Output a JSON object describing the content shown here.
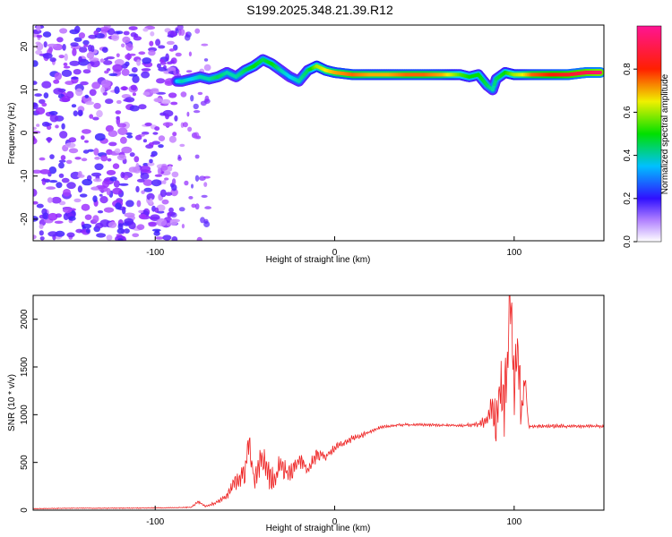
{
  "title": "S199.2025.348.21.39.R12",
  "chart_data": [
    {
      "type": "heatmap",
      "panel": "spectrogram",
      "xlabel": "Height of straight line (km)",
      "ylabel": "Frequency (Hz)",
      "xlim": [
        -168,
        150
      ],
      "ylim": [
        -25,
        25
      ],
      "xticks": [
        -100,
        0,
        100
      ],
      "yticks": [
        -20,
        -10,
        0,
        10,
        20
      ],
      "colorbar": {
        "label": "Normalized spectral amplitude",
        "range": [
          0,
          1
        ],
        "ticks": [
          0.0,
          0.2,
          0.4,
          0.6,
          0.8
        ],
        "colors": [
          "#ffffff",
          "#9a28ff",
          "#2020ff",
          "#00d2ff",
          "#00e000",
          "#f0f000",
          "#ff2000",
          "#ff1493"
        ]
      },
      "ridge": {
        "x": [
          -88,
          -85,
          -80,
          -75,
          -70,
          -65,
          -60,
          -55,
          -50,
          -45,
          -40,
          -35,
          -30,
          -25,
          -20,
          -15,
          -10,
          -5,
          0,
          10,
          20,
          30,
          40,
          50,
          60,
          70,
          75,
          80,
          85,
          88,
          90,
          95,
          100,
          105,
          110,
          120,
          130,
          140,
          148
        ],
        "freq": [
          12,
          12,
          12.5,
          13,
          12.5,
          13,
          14,
          13,
          14.5,
          15.5,
          17,
          16,
          14.5,
          13,
          12,
          14.5,
          15.5,
          14.5,
          14,
          13.5,
          13.5,
          13.5,
          13.5,
          13.5,
          13.5,
          13.5,
          13,
          13.5,
          11,
          10,
          12.5,
          14,
          13.5,
          13.5,
          13.5,
          13.5,
          13.5,
          14,
          14
        ],
        "amp": [
          0.35,
          0.4,
          0.35,
          0.4,
          0.4,
          0.45,
          0.4,
          0.4,
          0.45,
          0.5,
          0.45,
          0.5,
          0.4,
          0.35,
          0.4,
          0.45,
          0.6,
          0.65,
          0.7,
          0.75,
          0.7,
          0.7,
          0.75,
          0.75,
          0.7,
          0.55,
          0.5,
          0.5,
          0.45,
          0.4,
          0.45,
          0.5,
          0.6,
          0.65,
          0.75,
          0.8,
          0.85,
          0.9,
          0.95
        ]
      }
    },
    {
      "type": "line",
      "panel": "snr",
      "xlabel": "Height of straight line (km)",
      "ylabel": "SNR (10 * v/v)",
      "xlim": [
        -168,
        150
      ],
      "ylim": [
        0,
        2250
      ],
      "xticks": [
        -100,
        0,
        100
      ],
      "yticks": [
        0,
        500,
        1000,
        1500,
        2000
      ],
      "color": "#ee2020",
      "series": [
        {
          "x": [
            -168,
            -150,
            -130,
            -110,
            -90,
            -80,
            -76,
            -72,
            -66,
            -60,
            -55,
            -50,
            -48,
            -45,
            -40,
            -35,
            -30,
            -25,
            -20,
            -15,
            -10,
            -5,
            0,
            5,
            10,
            15,
            20,
            25,
            30,
            35,
            40,
            50,
            60,
            70,
            75,
            80,
            85,
            88,
            90,
            92,
            94,
            96,
            98,
            100,
            102,
            104,
            106,
            108,
            110,
            120,
            130,
            140,
            150
          ],
          "y": [
            15,
            20,
            20,
            22,
            25,
            30,
            90,
            40,
            80,
            150,
            300,
            400,
            720,
            330,
            550,
            300,
            450,
            380,
            530,
            420,
            590,
            560,
            650,
            700,
            750,
            780,
            830,
            860,
            880,
            890,
            895,
            895,
            890,
            885,
            890,
            900,
            930,
            1100,
            900,
            1300,
            1100,
            1400,
            2250,
            1250,
            1700,
            1000,
            1400,
            880,
            880,
            880,
            880,
            880,
            880
          ],
          "amplitude": [
            5,
            5,
            5,
            5,
            5,
            8,
            20,
            10,
            20,
            40,
            120,
            160,
            150,
            170,
            180,
            160,
            150,
            130,
            110,
            90,
            80,
            60,
            50,
            40,
            40,
            30,
            25,
            20,
            20,
            15,
            15,
            15,
            15,
            15,
            20,
            30,
            100,
            200,
            300,
            350,
            400,
            450,
            450,
            400,
            350,
            250,
            150,
            30,
            20,
            20,
            20,
            20,
            20
          ]
        }
      ]
    }
  ]
}
